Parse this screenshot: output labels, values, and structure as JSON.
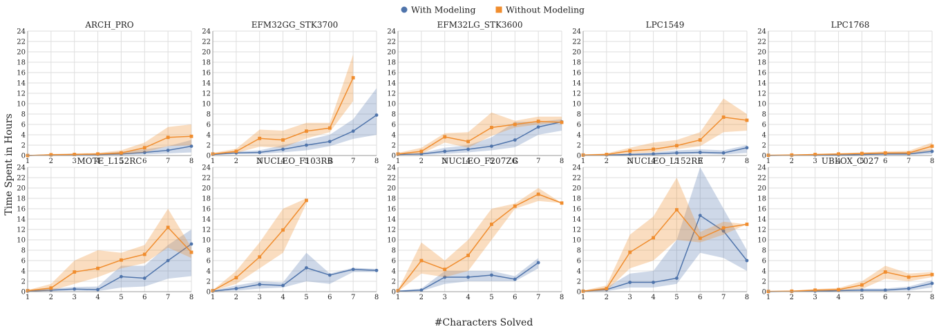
{
  "chart_data": {
    "type": "line",
    "xlabel": "#Characters Solved",
    "ylabel": "Time Spent in Hours",
    "x": [
      1,
      2,
      3,
      4,
      5,
      6,
      7,
      8
    ],
    "xlim": [
      1,
      8
    ],
    "ylim": [
      0,
      24
    ],
    "yticks": [
      0,
      2,
      4,
      6,
      8,
      10,
      12,
      14,
      16,
      18,
      20,
      22,
      24
    ],
    "grid": true,
    "legend_position": "top-center",
    "series_meta": [
      {
        "name": "With Modeling",
        "color": "#4f74ab",
        "marker": "circle"
      },
      {
        "name": "Without Modeling",
        "color": "#f08d2e",
        "marker": "square"
      }
    ],
    "panels": [
      {
        "title": "ARCH_PRO",
        "with": {
          "mean": [
            0,
            0.1,
            0.2,
            0.2,
            0.3,
            0.6,
            1,
            1.8
          ],
          "low": [
            0,
            0,
            0.05,
            0.05,
            0.1,
            0.2,
            0.4,
            0.6
          ],
          "high": [
            0,
            0.2,
            0.3,
            0.4,
            0.7,
            1.2,
            1.8,
            3
          ]
        },
        "without": {
          "mean": [
            0,
            0.15,
            0.2,
            0.3,
            0.5,
            1.5,
            3.5,
            3.7
          ],
          "low": [
            0,
            0.05,
            0.1,
            0.1,
            0.2,
            0.6,
            1.8,
            2
          ],
          "high": [
            0,
            0.3,
            0.4,
            0.5,
            1,
            2.5,
            5.5,
            6
          ]
        }
      },
      {
        "title": "EFM32GG_STK3700",
        "with": {
          "mean": [
            0.2,
            0.5,
            0.6,
            1.2,
            2,
            2.7,
            4.7,
            7.8
          ],
          "low": [
            0.1,
            0.3,
            0.3,
            0.6,
            1,
            1.8,
            3.2,
            4
          ],
          "high": [
            0.3,
            0.8,
            1,
            2,
            3,
            4,
            7,
            13
          ]
        },
        "without": {
          "mean": [
            0.3,
            0.8,
            3.3,
            3,
            4.7,
            5.3,
            15,
            null
          ],
          "low": [
            0.2,
            0.5,
            1.7,
            1.5,
            3.3,
            4.5,
            10.5,
            null
          ],
          "high": [
            0.5,
            1.3,
            5,
            4.8,
            6.3,
            6.3,
            19.5,
            null
          ]
        }
      },
      {
        "title": "EFM32LG_STK3600",
        "with": {
          "mean": [
            0.2,
            0.3,
            0.8,
            1.2,
            1.8,
            3,
            5.5,
            6.5
          ],
          "low": [
            0.1,
            0.1,
            0.3,
            0.6,
            1,
            1.6,
            4,
            4.8
          ],
          "high": [
            0.3,
            0.5,
            1.5,
            2,
            3.5,
            6.5,
            6.5,
            7
          ]
        },
        "without": {
          "mean": [
            0.3,
            0.8,
            3.6,
            2.7,
            5.4,
            6,
            6.6,
            6.4
          ],
          "low": [
            0.2,
            0.3,
            2.5,
            1.5,
            3.8,
            5.4,
            6,
            6.4
          ],
          "high": [
            0.5,
            1.5,
            4.3,
            4.5,
            8.3,
            6.7,
            7.5,
            7.5
          ]
        }
      },
      {
        "title": "LPC1549",
        "with": {
          "mean": [
            0.05,
            0.1,
            0.2,
            0.3,
            0.5,
            0.6,
            0.5,
            1.5
          ],
          "low": [
            0,
            0,
            0.05,
            0.05,
            0.2,
            0.3,
            0.2,
            0.5
          ],
          "high": [
            0.1,
            0.2,
            0.4,
            0.6,
            1,
            1.2,
            1,
            2
          ]
        },
        "without": {
          "mean": [
            0.1,
            0.2,
            0.9,
            1.2,
            1.9,
            3,
            7.4,
            6.8
          ],
          "low": [
            0,
            0.05,
            0.4,
            0.6,
            1.2,
            1.8,
            4.5,
            4.8
          ],
          "high": [
            0.2,
            0.4,
            1.5,
            2.5,
            3,
            4.5,
            11,
            8
          ]
        }
      },
      {
        "title": "LPC1768",
        "with": {
          "mean": [
            0,
            0.05,
            0.1,
            0.1,
            0.2,
            0.3,
            0.3,
            0.8
          ],
          "low": [
            0,
            0,
            0.05,
            0.05,
            0.1,
            0.1,
            0.1,
            0.3
          ],
          "high": [
            0.05,
            0.1,
            0.2,
            0.3,
            0.4,
            0.6,
            0.7,
            1.2
          ]
        },
        "without": {
          "mean": [
            0.05,
            0.1,
            0.2,
            0.3,
            0.4,
            0.5,
            0.5,
            1.8
          ],
          "low": [
            0,
            0.05,
            0.1,
            0.1,
            0.2,
            0.3,
            0.3,
            1
          ],
          "high": [
            0.1,
            0.2,
            0.3,
            0.4,
            0.6,
            0.8,
            0.9,
            2.5
          ]
        }
      },
      {
        "title": "MOTE_L152RC",
        "with": {
          "mean": [
            0.1,
            0.3,
            0.5,
            0.4,
            2.9,
            2.6,
            6,
            9.2
          ],
          "low": [
            0,
            0.1,
            0.2,
            0.1,
            0.8,
            1,
            2.5,
            3
          ],
          "high": [
            0.2,
            0.6,
            0.9,
            1,
            5,
            5,
            9,
            12
          ]
        },
        "without": {
          "mean": [
            0.2,
            0.7,
            3.8,
            4.5,
            6.1,
            7.2,
            12.4,
            7.6
          ],
          "low": [
            0,
            0.2,
            1.5,
            2.8,
            4.5,
            5.5,
            8.5,
            6.5
          ],
          "high": [
            0.3,
            1.5,
            6,
            8,
            7.5,
            9,
            16,
            8.5
          ]
        }
      },
      {
        "title": "NUCLEO_F103RB",
        "with": {
          "mean": [
            0.1,
            0.6,
            1.4,
            1.2,
            4.6,
            3.2,
            4.3,
            4.1
          ],
          "low": [
            0,
            0.2,
            0.6,
            0.8,
            2,
            1.5,
            3.8,
            3.8
          ],
          "high": [
            0.2,
            1.2,
            2,
            1.8,
            7.5,
            3.5,
            4.6,
            4.4
          ]
        },
        "without": {
          "mean": [
            0.2,
            2.7,
            6.7,
            11.9,
            17.6,
            null,
            null,
            null
          ],
          "low": [
            0.1,
            1.5,
            4.5,
            7.5,
            17,
            null,
            null,
            null
          ],
          "high": [
            0.3,
            4,
            9.5,
            16,
            18,
            null,
            null,
            null
          ]
        }
      },
      {
        "title": "NUCLEO_F207ZG",
        "with": {
          "mean": [
            0.1,
            0.3,
            2.8,
            2.8,
            3.2,
            2.4,
            5.6,
            null
          ],
          "low": [
            0,
            0.1,
            1.5,
            2,
            2,
            2,
            4.5,
            null
          ],
          "high": [
            0.2,
            0.6,
            4,
            4,
            4,
            3,
            6.5,
            null
          ]
        },
        "without": {
          "mean": [
            0.2,
            6,
            4.3,
            7,
            13,
            16.5,
            18.8,
            17.1
          ],
          "low": [
            0,
            3.5,
            2.8,
            4,
            10,
            16,
            17.5,
            17.1
          ],
          "high": [
            0.3,
            9.5,
            6,
            10,
            16,
            17,
            20,
            17.1
          ]
        }
      },
      {
        "title": "NUCLEO_L152RE",
        "with": {
          "mean": [
            0.1,
            0.4,
            1.8,
            1.8,
            2.6,
            14.7,
            11.7,
            6
          ],
          "low": [
            0,
            0.1,
            0.8,
            0.8,
            1.5,
            7.5,
            6.5,
            4
          ],
          "high": [
            0.2,
            0.8,
            3.5,
            4,
            10,
            24,
            16,
            8
          ]
        },
        "without": {
          "mean": [
            0.1,
            0.6,
            7.6,
            10.4,
            15.8,
            10.3,
            12.3,
            13
          ],
          "low": [
            0,
            0.2,
            4.5,
            6,
            10,
            9.5,
            11,
            13
          ],
          "high": [
            0.2,
            1.2,
            11,
            14.5,
            22,
            11.5,
            13.5,
            13
          ]
        }
      },
      {
        "title": "UBLOX_C027",
        "with": {
          "mean": [
            0,
            0.05,
            0.1,
            0.2,
            0.3,
            0.3,
            0.6,
            1.6
          ],
          "low": [
            0,
            0,
            0.05,
            0.1,
            0.1,
            0.1,
            0.2,
            0.8
          ],
          "high": [
            0.05,
            0.1,
            0.2,
            0.4,
            0.6,
            0.6,
            1,
            2.2
          ]
        },
        "without": {
          "mean": [
            0.05,
            0.1,
            0.3,
            0.4,
            1.3,
            3.8,
            2.8,
            3.3
          ],
          "low": [
            0,
            0.05,
            0.1,
            0.2,
            0.5,
            2.5,
            2,
            2.8
          ],
          "high": [
            0.1,
            0.2,
            0.5,
            0.7,
            2,
            5,
            3.5,
            3.8
          ]
        }
      }
    ]
  }
}
